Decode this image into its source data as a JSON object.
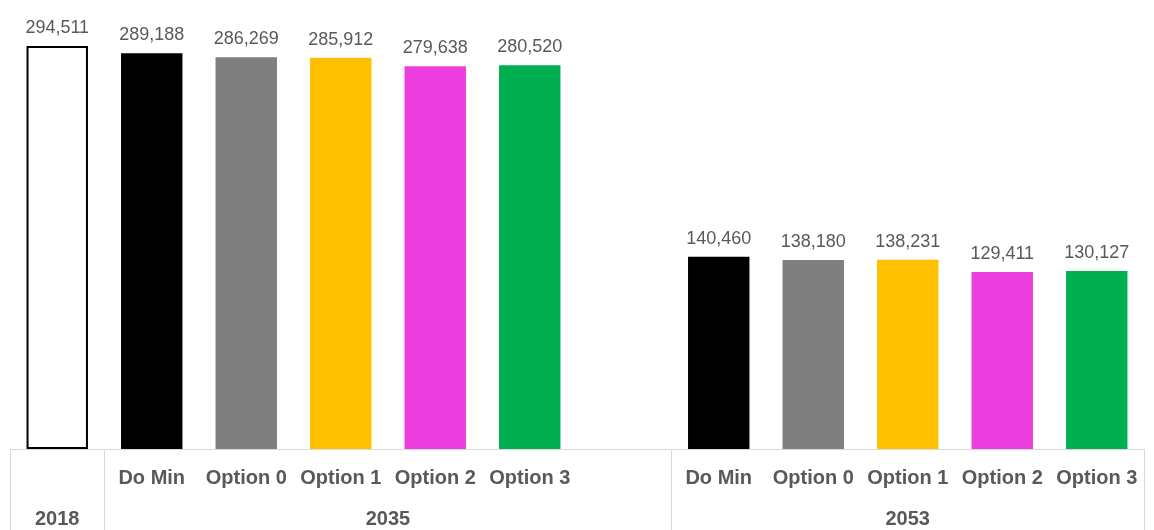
{
  "chart_data": {
    "type": "bar",
    "categories": [
      null,
      "Do Min",
      "Option 0",
      "Option 1",
      "Option 2",
      "Option 3",
      null,
      "Do Min",
      "Option 0",
      "Option 1",
      "Option 2",
      "Option 3"
    ],
    "values": [
      294511,
      289188,
      286269,
      285912,
      279638,
      280520,
      null,
      140460,
      138180,
      138231,
      129411,
      130127
    ],
    "value_labels": [
      "294,511",
      "289,188",
      "286,269",
      "285,912",
      "279,638",
      "280,520",
      null,
      "140,460",
      "138,180",
      "138,231",
      "129,411",
      "130,127"
    ],
    "colors": [
      "#ffffff",
      "#000000",
      "#7f7f7f",
      "#ffc000",
      "#ec3ddf",
      "#00b050",
      null,
      "#000000",
      "#7f7f7f",
      "#ffc000",
      "#ec3ddf",
      "#00b050"
    ],
    "annotations": [
      "2018",
      "2035",
      "2053"
    ]
  }
}
